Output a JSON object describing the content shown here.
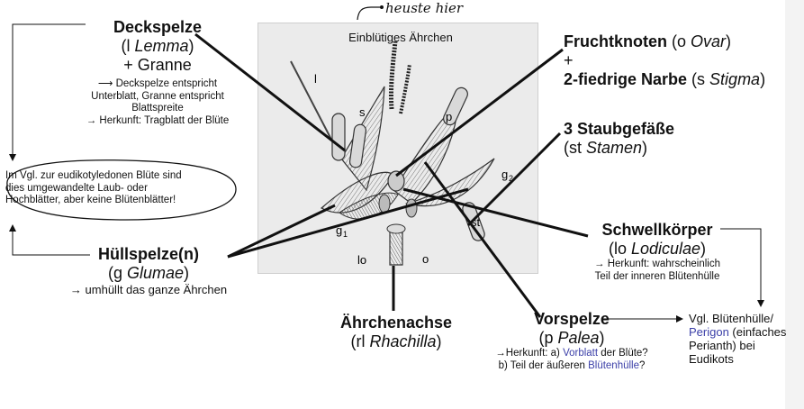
{
  "handwritten_note": "heuste hier",
  "photo_title": "Einblütiges Ährchen",
  "photo_letters": {
    "l": "l",
    "s": "s",
    "p": "p",
    "g2": "g",
    "g2_sub": "2",
    "g1": "g",
    "g1_sub": "1",
    "st": "st",
    "lo": "lo",
    "o": "o"
  },
  "deckspelze": {
    "title": "Deckspelze",
    "sub_prefix": "(l ",
    "sub_italic": "Lemma",
    "sub_suffix": ")",
    "granne": "+ Granne",
    "note1": "⟶ Deckspelze entspricht",
    "note2": "Unterblatt, Granne entspricht",
    "note3": "Blattspreite",
    "note4": "→ Herkunft: Tragblatt der Blüte"
  },
  "circled_note": {
    "line1": "Im Vgl. zur eudikotyledonen Blüte sind",
    "line2": "dies umgewandelte Laub- oder",
    "line3": "Hochblätter, aber keine Blütenblätter!"
  },
  "huellspelze": {
    "title": "Hüllspelze(n)",
    "sub_prefix": "(g  ",
    "sub_italic": "Glumae",
    "sub_suffix": ")",
    "note": "→ umhüllt das ganze Ährchen"
  },
  "aehrchenachse": {
    "title": "Ährchenachse",
    "sub_prefix": "(rl  ",
    "sub_italic": "Rhachilla",
    "sub_suffix": ")"
  },
  "vorspelze": {
    "title": "Vorspelze",
    "sub_prefix": "(p ",
    "sub_italic": "Palea",
    "sub_suffix": ")",
    "note1_prefix": "→Herkunft: a) ",
    "note1_blue": "Vorblatt",
    "note1_suffix": " der Blüte?",
    "note2_prefix": "b) Teil der äußeren ",
    "note2_blue": "Blütenhülle",
    "note2_suffix": "?"
  },
  "fruchtknoten": {
    "title": "Fruchtknoten",
    "sub_prefix": " (o ",
    "sub_italic": "Ovar",
    "sub_suffix": ")",
    "plus": "+",
    "narbe": "2-fiedrige Narbe",
    "narbe_prefix": " (s ",
    "narbe_italic": "Stigma",
    "narbe_suffix": ")"
  },
  "staubgefaesse": {
    "title": "3 Staubgefäße",
    "sub_prefix": "(st  ",
    "sub_italic": "Stamen",
    "sub_suffix": ")"
  },
  "schwellkoerper": {
    "title": "Schwellkörper",
    "sub_prefix": "(lo  ",
    "sub_italic": "Lodiculae",
    "sub_suffix": ")",
    "note1": "→ Herkunft: wahrscheinlich",
    "note2": "Teil der inneren Blütenhülle"
  },
  "vgl": {
    "line1": "Vgl. Blütenhülle/",
    "line2_blue": "Perigon",
    "line2_suffix": " (einfaches",
    "line3": "Perianth) bei",
    "line4": "Eudikots"
  },
  "colors": {
    "accent_blue": "#3b3fa8",
    "photo_bg": "#ebebeb"
  }
}
